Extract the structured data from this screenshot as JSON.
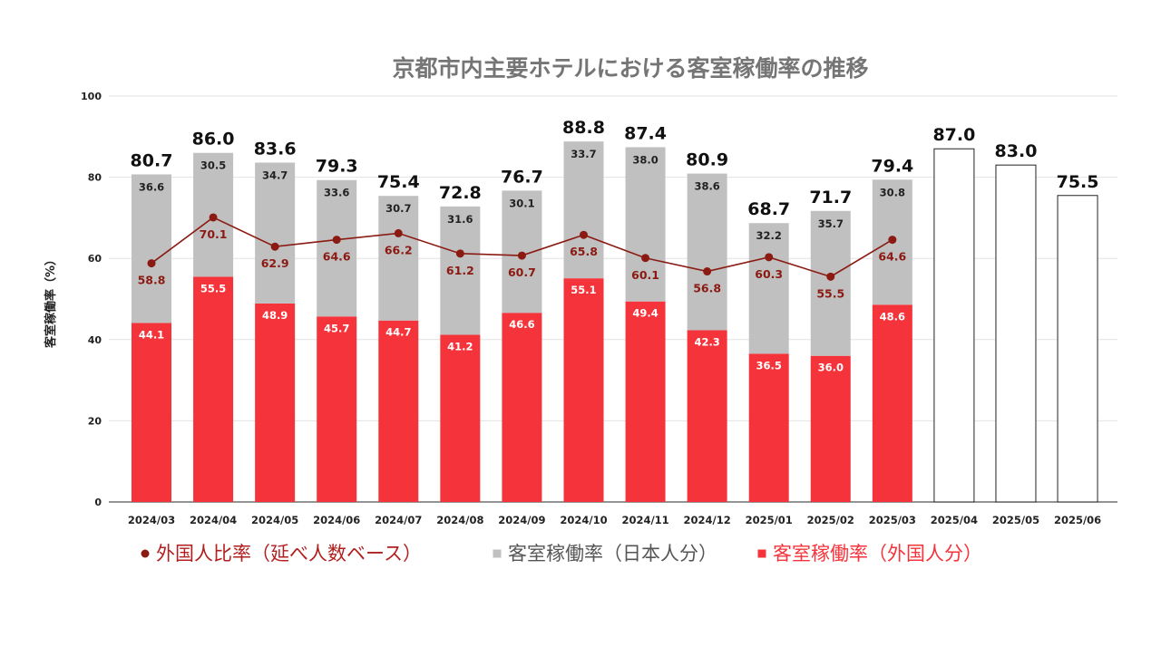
{
  "chart_data": {
    "type": "bar",
    "title": "京都市内主要ホテルにおける客室稼働率の推移",
    "ylabel": "客室稼働率（%）",
    "ylim": [
      0,
      100
    ],
    "yticks": [
      0,
      20,
      40,
      60,
      80,
      100
    ],
    "grid": true,
    "legend_position": "bottom",
    "categories": [
      "2024/03",
      "2024/04",
      "2024/05",
      "2024/06",
      "2024/07",
      "2024/08",
      "2024/09",
      "2024/10",
      "2024/11",
      "2024/12",
      "2025/01",
      "2025/02",
      "2025/03",
      "2025/04",
      "2025/05",
      "2025/06"
    ],
    "totals": [
      "80.7",
      "86.0",
      "83.6",
      "79.3",
      "75.4",
      "72.8",
      "76.7",
      "88.8",
      "87.4",
      "80.9",
      "68.7",
      "71.7",
      "79.4",
      "87.0",
      "83.0",
      "75.5"
    ],
    "total_values": [
      80.7,
      86.0,
      83.6,
      79.3,
      75.4,
      72.8,
      76.7,
      88.8,
      87.4,
      80.9,
      68.7,
      71.7,
      79.4,
      87.0,
      83.0,
      75.5
    ],
    "series": [
      {
        "name": "客室稼働率（外国人分）",
        "type": "bar-stacked",
        "color": "#f5333a",
        "values": [
          44.1,
          55.5,
          48.9,
          45.7,
          44.7,
          41.2,
          46.6,
          55.1,
          49.4,
          42.3,
          36.5,
          36.0,
          48.6,
          null,
          null,
          null
        ],
        "labels": [
          "44.1",
          "55.5",
          "48.9",
          "45.7",
          "44.7",
          "41.2",
          "46.6",
          "55.1",
          "49.4",
          "42.3",
          "36.5",
          "36.0",
          "48.6",
          "",
          "",
          ""
        ]
      },
      {
        "name": "客室稼働率（日本人分）",
        "type": "bar-stacked",
        "color": "#c0c0c0",
        "values": [
          36.6,
          30.5,
          34.7,
          33.6,
          30.7,
          31.6,
          30.1,
          33.7,
          38.0,
          38.6,
          32.2,
          35.7,
          30.8,
          null,
          null,
          null
        ],
        "labels": [
          "36.6",
          "30.5",
          "34.7",
          "33.6",
          "30.7",
          "31.6",
          "30.1",
          "33.7",
          "38.0",
          "38.6",
          "32.2",
          "35.7",
          "30.8",
          "",
          "",
          ""
        ]
      },
      {
        "name": "外国人比率（延べ人数ベース）",
        "type": "line",
        "color": "#8b1a12",
        "values": [
          58.8,
          70.1,
          62.9,
          64.6,
          66.2,
          61.2,
          60.7,
          65.8,
          60.1,
          56.8,
          60.3,
          55.5,
          64.6,
          null,
          null,
          null
        ],
        "labels": [
          "58.8",
          "70.1",
          "62.9",
          "64.6",
          "66.2",
          "61.2",
          "60.7",
          "65.8",
          "60.1",
          "56.8",
          "60.3",
          "55.5",
          "64.6",
          "",
          "",
          ""
        ]
      }
    ],
    "legend": [
      {
        "name": "外国人比率（延べ人数ベース）",
        "color": "#8b1a12",
        "text_color": "#b11f1f",
        "shape": "circle"
      },
      {
        "name": "客室稼働率（日本人分）",
        "color": "#c0c0c0",
        "text_color": "#555555",
        "shape": "square"
      },
      {
        "name": "客室稼働率（外国人分）",
        "color": "#f5333a",
        "text_color": "#f5333a",
        "shape": "square"
      }
    ]
  }
}
